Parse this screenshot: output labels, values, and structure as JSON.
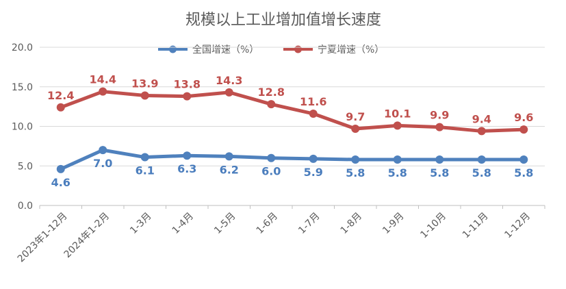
{
  "chart_data": {
    "type": "line",
    "title": "规模以上工业增加值增长速度",
    "categories": [
      "2023年1-12月",
      "2024年1-2月",
      "1-3月",
      "1-4月",
      "1-5月",
      "1-6月",
      "1-7月",
      "1-8月",
      "1-9月",
      "1-10月",
      "1-11月",
      "1-12月"
    ],
    "series": [
      {
        "name": "全国增速（%）",
        "color": "#4f81bd",
        "label_color": "#4a7dbd",
        "values": [
          4.6,
          7.0,
          6.1,
          6.3,
          6.2,
          6.0,
          5.9,
          5.8,
          5.8,
          5.8,
          5.8,
          5.8
        ],
        "labels": [
          "4.6",
          "7.0",
          "6.1",
          "6.3",
          "6.2",
          "6.0",
          "5.9",
          "5.8",
          "5.8",
          "5.8",
          "5.8",
          "5.8"
        ],
        "label_position": "below"
      },
      {
        "name": "宁夏增速（%）",
        "color": "#c0504d",
        "label_color": "#c0504d",
        "values": [
          12.4,
          14.4,
          13.9,
          13.8,
          14.3,
          12.8,
          11.6,
          9.7,
          10.1,
          9.9,
          9.4,
          9.6
        ],
        "labels": [
          "12.4",
          "14.4",
          "13.9",
          "13.8",
          "14.3",
          "12.8",
          "11.6",
          "9.7",
          "10.1",
          "9.9",
          "9.4",
          "9.6"
        ],
        "label_position": "above"
      }
    ],
    "yticks": [
      "0.0",
      "5.0",
      "10.0",
      "15.0",
      "20.0"
    ],
    "ylim": [
      0,
      20
    ],
    "xlabel": "",
    "ylabel": "",
    "grid": true,
    "legend_position": "top-center"
  }
}
